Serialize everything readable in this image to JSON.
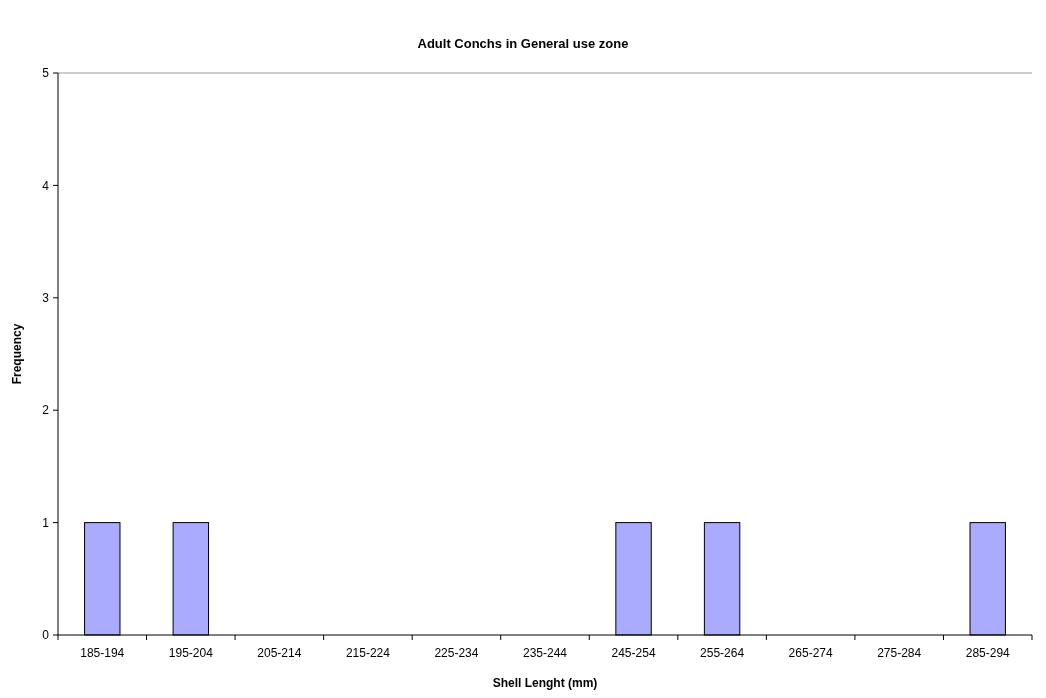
{
  "chart_data": {
    "type": "bar",
    "title": "Adult Conchs in General use zone",
    "xlabel": "Shell Lenght (mm)",
    "ylabel": "Frequency",
    "categories": [
      "185-194",
      "195-204",
      "205-214",
      "215-224",
      "225-234",
      "235-244",
      "245-254",
      "255-264",
      "265-274",
      "275-284",
      "285-294"
    ],
    "values": [
      1,
      1,
      0,
      0,
      0,
      0,
      1,
      1,
      0,
      0,
      1
    ],
    "color": "#aaaaff",
    "ylim": [
      0,
      5
    ],
    "yticks": [
      0,
      1,
      2,
      3,
      4,
      5
    ],
    "grid": false
  }
}
